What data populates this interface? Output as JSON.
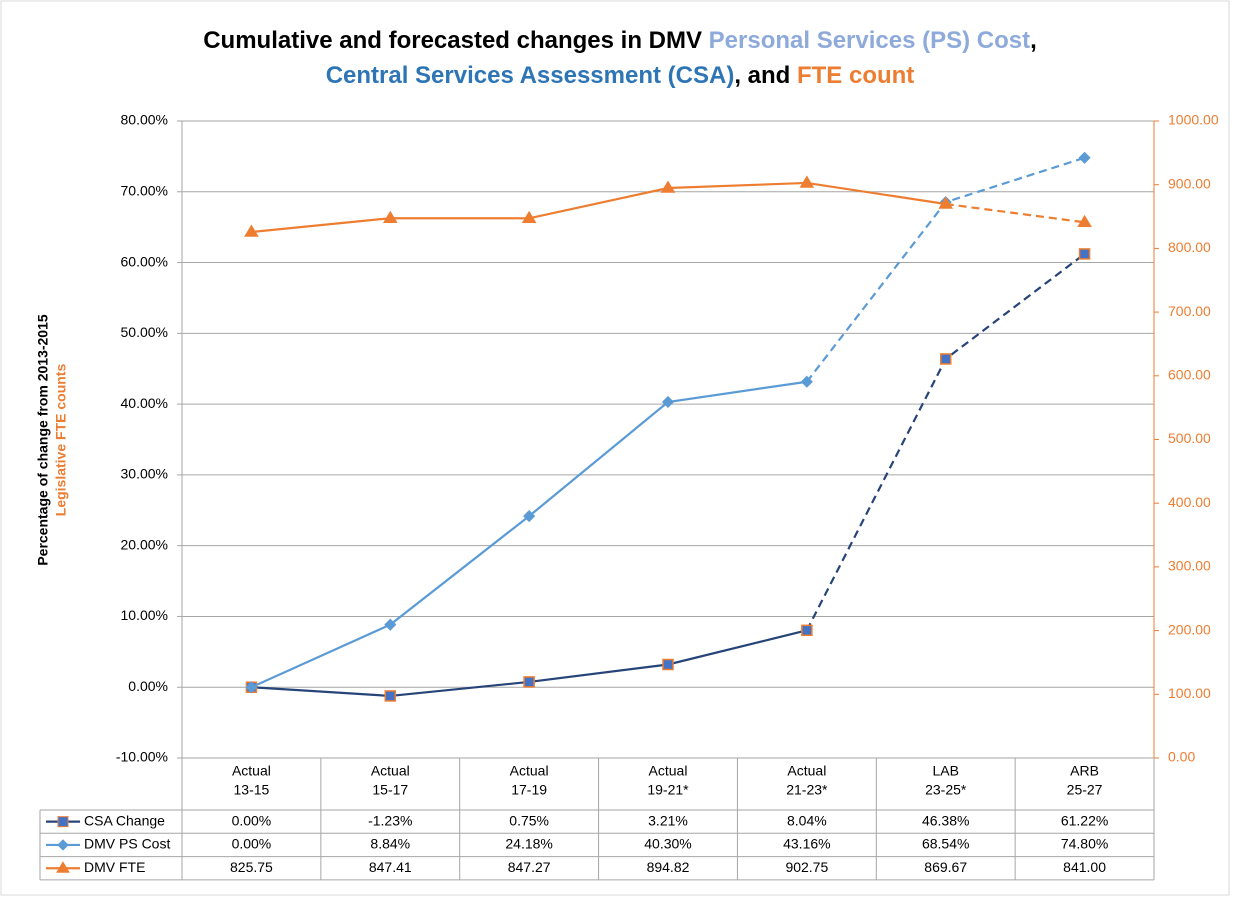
{
  "chart_data": {
    "type": "line",
    "title": [
      [
        {
          "text": "Cumulative and forecasted changes in DMV ",
          "color": "#000000"
        },
        {
          "text": "Personal Services (PS) Cost",
          "color": "#8eaadb"
        },
        {
          "text": ",",
          "color": "#000000"
        }
      ],
      [
        {
          "text": "Central Services Assessment (CSA)",
          "color": "#2e75b6"
        },
        {
          "text": ", and ",
          "color": "#000000"
        },
        {
          "text": "FTE count",
          "color": "#ed7d31"
        }
      ]
    ],
    "y_label": {
      "text": "Percentage of change from 2013-2015",
      "color": "#000000"
    },
    "y2_label": {
      "text": "Legislative FTE counts",
      "color": "#ed7d31"
    },
    "categories": [
      [
        "Actual",
        "13-15"
      ],
      [
        "Actual",
        "15-17"
      ],
      [
        "Actual",
        "17-19"
      ],
      [
        "Actual",
        "19-21*"
      ],
      [
        "Actual",
        "21-23*"
      ],
      [
        "LAB",
        "23-25*"
      ],
      [
        "ARB",
        "25-27"
      ]
    ],
    "series": [
      {
        "name": "CSA Change",
        "color": "#264478",
        "marker": "square",
        "marker_color": "#4472c4",
        "marker_edge": "#ed7d31",
        "dash_from": 4,
        "values": [
          0,
          -1.23,
          0.75,
          3.21,
          8.04,
          46.38,
          61.22
        ],
        "value_labels": [
          "0.00%",
          "-1.23%",
          "0.75%",
          "3.21%",
          "8.04%",
          "46.38%",
          "61.22%"
        ]
      },
      {
        "name": "DMV PS Cost",
        "color": "#5b9bd5",
        "marker": "diamond",
        "marker_color": "#5b9bd5",
        "marker_edge": "#5b9bd5",
        "dash_from": 4,
        "values": [
          0,
          8.84,
          24.18,
          40.3,
          43.16,
          68.54,
          74.8
        ],
        "value_labels": [
          "0.00%",
          "8.84%",
          "24.18%",
          "40.30%",
          "43.16%",
          "68.54%",
          "74.80%"
        ]
      },
      {
        "name": "DMV FTE",
        "color": "#ed7d31",
        "marker": "triangle",
        "marker_color": "#ed7d31",
        "marker_edge": "#ed7d31",
        "dash_from": 5,
        "axis": "y2",
        "values": [
          825.75,
          847.41,
          847.27,
          894.82,
          902.75,
          869.67,
          841.0
        ],
        "value_labels": [
          "825.75",
          "847.41",
          "847.27",
          "894.82",
          "902.75",
          "869.67",
          "841.00"
        ]
      }
    ],
    "ylim": [
      -10,
      80
    ],
    "yticks": [
      {
        "value": -10,
        "label": "-10.00%"
      },
      {
        "value": 0,
        "label": "0.00%"
      },
      {
        "value": 10,
        "label": "10.00%"
      },
      {
        "value": 20,
        "label": "20.00%"
      },
      {
        "value": 30,
        "label": "30.00%"
      },
      {
        "value": 40,
        "label": "40.00%"
      },
      {
        "value": 50,
        "label": "50.00%"
      },
      {
        "value": 60,
        "label": "60.00%"
      },
      {
        "value": 70,
        "label": "70.00%"
      },
      {
        "value": 80,
        "label": "80.00%"
      }
    ],
    "y2lim": [
      0,
      1000
    ],
    "y2ticks": [
      {
        "value": 0,
        "label": "0.00"
      },
      {
        "value": 100,
        "label": "100.00"
      },
      {
        "value": 200,
        "label": "200.00"
      },
      {
        "value": 300,
        "label": "300.00"
      },
      {
        "value": 400,
        "label": "400.00"
      },
      {
        "value": 500,
        "label": "500.00"
      },
      {
        "value": 600,
        "label": "600.00"
      },
      {
        "value": 700,
        "label": "700.00"
      },
      {
        "value": 800,
        "label": "800.00"
      },
      {
        "value": 900,
        "label": "900.00"
      },
      {
        "value": 1000,
        "label": "1000.00"
      }
    ],
    "y2color": "#ed7d31",
    "grid": true
  }
}
